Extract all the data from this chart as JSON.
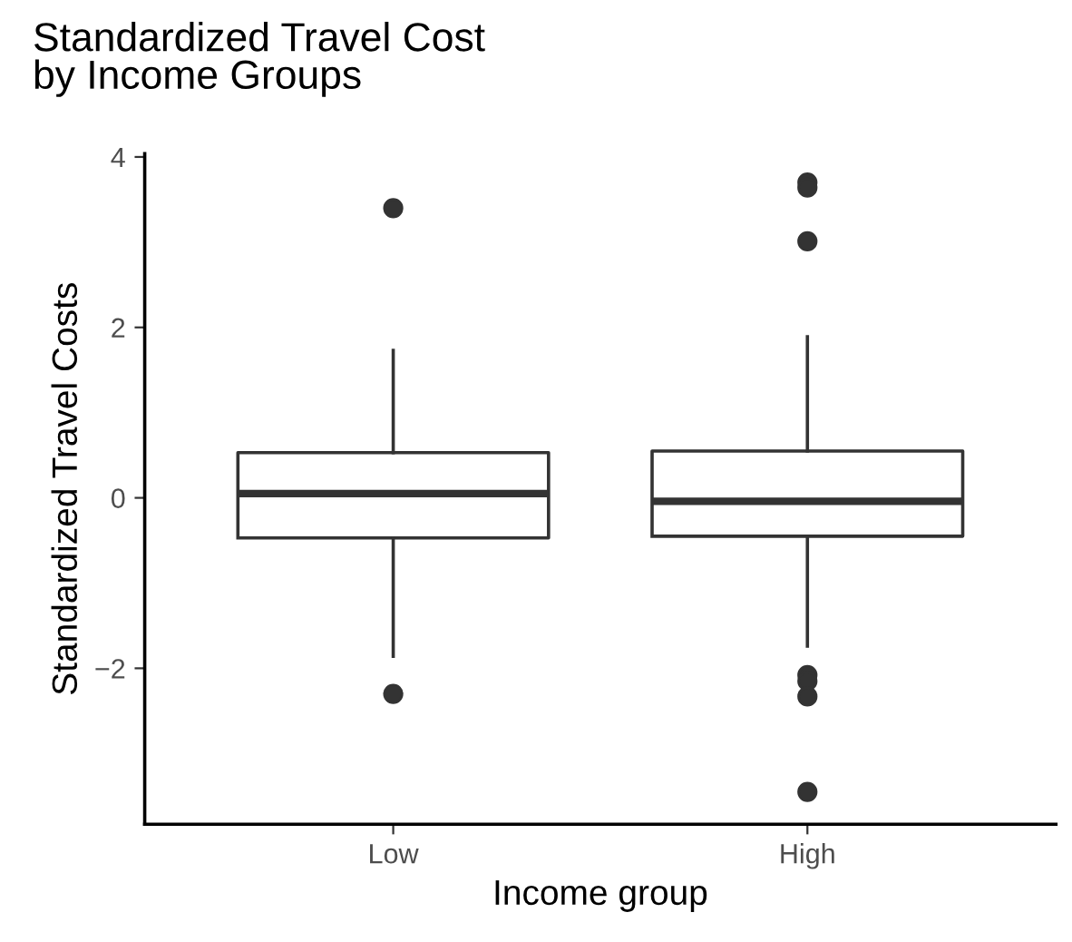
{
  "chart_data": {
    "type": "box",
    "title": "Standardized Travel Cost\nby Income Groups",
    "xlabel": "Income group",
    "ylabel": "Standardized Travel Costs",
    "categories": [
      "Low",
      "High"
    ],
    "boxes": [
      {
        "low": -1.86,
        "q1": -0.47,
        "median": 0.05,
        "q3": 0.53,
        "high": 1.73,
        "outliers": [
          3.4,
          -2.3
        ]
      },
      {
        "low": -1.74,
        "q1": -0.45,
        "median": -0.04,
        "q3": 0.55,
        "high": 1.89,
        "outliers": [
          3.7,
          3.64,
          3.01,
          -2.08,
          -2.15,
          -2.33,
          -3.45
        ]
      }
    ],
    "ylim": [
      -3.83,
      4.04
    ],
    "yticks": [
      {
        "value": -2,
        "label": "−2"
      },
      0,
      2,
      4
    ],
    "grid": false,
    "color": "#333333"
  }
}
